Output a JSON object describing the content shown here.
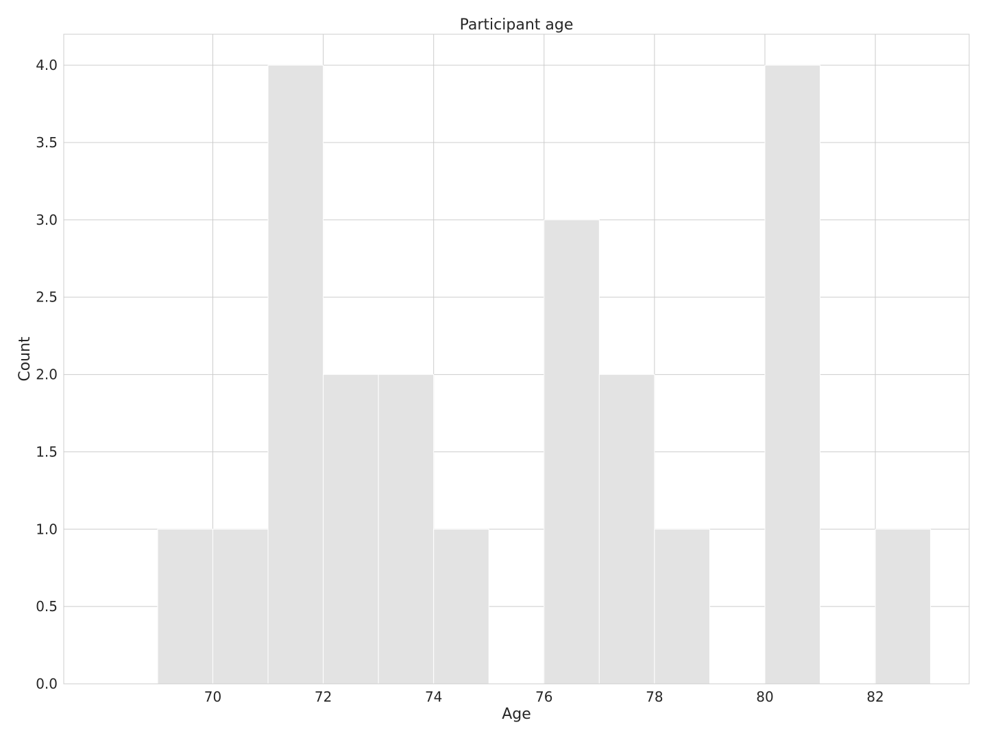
{
  "chart_data": {
    "type": "bar",
    "title": "Participant age",
    "xlabel": "Age",
    "ylabel": "Count",
    "bin_edges": [
      69,
      70,
      71,
      72,
      73,
      74,
      75,
      76,
      77,
      78,
      79,
      80,
      81,
      82,
      83
    ],
    "counts": [
      1,
      1,
      4,
      2,
      2,
      1,
      0,
      3,
      2,
      1,
      0,
      4,
      0,
      1
    ],
    "xlim": [
      67.3,
      83.7
    ],
    "ylim": [
      0,
      4.2
    ],
    "x_ticks": [
      70,
      72,
      74,
      76,
      78,
      80,
      82
    ],
    "y_ticks": [
      0.0,
      0.5,
      1.0,
      1.5,
      2.0,
      2.5,
      3.0,
      3.5,
      4.0
    ],
    "y_tick_labels": [
      "0.0",
      "0.5",
      "1.0",
      "1.5",
      "2.0",
      "2.5",
      "3.0",
      "3.5",
      "4.0"
    ],
    "x_tick_labels": [
      "70",
      "72",
      "74",
      "76",
      "78",
      "80",
      "82"
    ],
    "grid": true,
    "bar_color": "#e3e3e3",
    "grid_color": "#cccccc"
  }
}
